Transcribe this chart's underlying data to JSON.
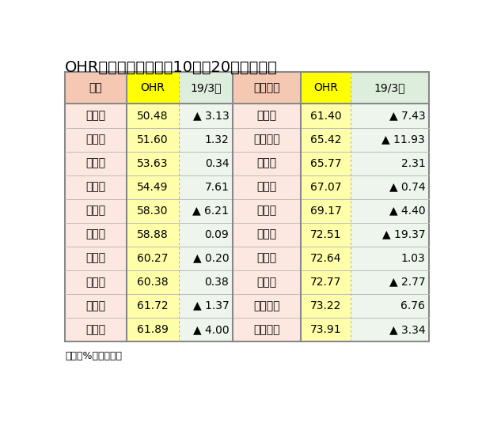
{
  "title": "OHRが低い地域銀上位10行（20年３月期）",
  "footer": "単位：%、ポイント",
  "headers": [
    "地銀",
    "OHR",
    "19/3比",
    "第二地銀",
    "OHR",
    "19/3比"
  ],
  "rows": [
    [
      "山　口",
      "50.48",
      "▲ 3.13",
      "もみじ",
      "61.40",
      "▲ 7.43"
    ],
    [
      "福　岡",
      "51.60",
      "1.32",
      "富山第一",
      "65.42",
      "▲ 11.93"
    ],
    [
      "千　葉",
      "53.63",
      "0.34",
      "西　京",
      "65.77",
      "2.31"
    ],
    [
      "スルガ",
      "54.49",
      "7.61",
      "京　葉",
      "67.07",
      "▲ 0.74"
    ],
    [
      "常　陽",
      "58.30",
      "▲ 6.21",
      "東　和",
      "69.17",
      "▲ 4.40"
    ],
    [
      "横　浜",
      "58.88",
      "0.09",
      "栃　木",
      "72.51",
      "▲ 19.37"
    ],
    [
      "広　島",
      "60.27",
      "▲ 0.20",
      "熊　本",
      "72.64",
      "1.03"
    ],
    [
      "静　岡",
      "60.38",
      "0.38",
      "愛　媛",
      "72.77",
      "▲ 2.77"
    ],
    [
      "八十二",
      "61.72",
      "▲ 1.37",
      "徳島大正",
      "73.22",
      "6.76"
    ],
    [
      "北　国",
      "61.89",
      "▲ 4.00",
      "静岡中央",
      "73.91",
      "▲ 3.34"
    ]
  ],
  "col_header_bg": [
    "#f5c8b4",
    "#ffff00",
    "#ddeedd",
    "#f5c8b4",
    "#ffff00",
    "#ddeedd"
  ],
  "col_data_bg": [
    "#fce8e0",
    "#ffffaa",
    "#edf5ed",
    "#fce8e0",
    "#ffffaa",
    "#edf5ed"
  ],
  "border_color": "#888888",
  "dotted_border_color": "#aaaaaa",
  "title_color": "#000000",
  "title_fontsize": 14,
  "header_fontsize": 10,
  "data_fontsize": 10,
  "footer_fontsize": 9
}
